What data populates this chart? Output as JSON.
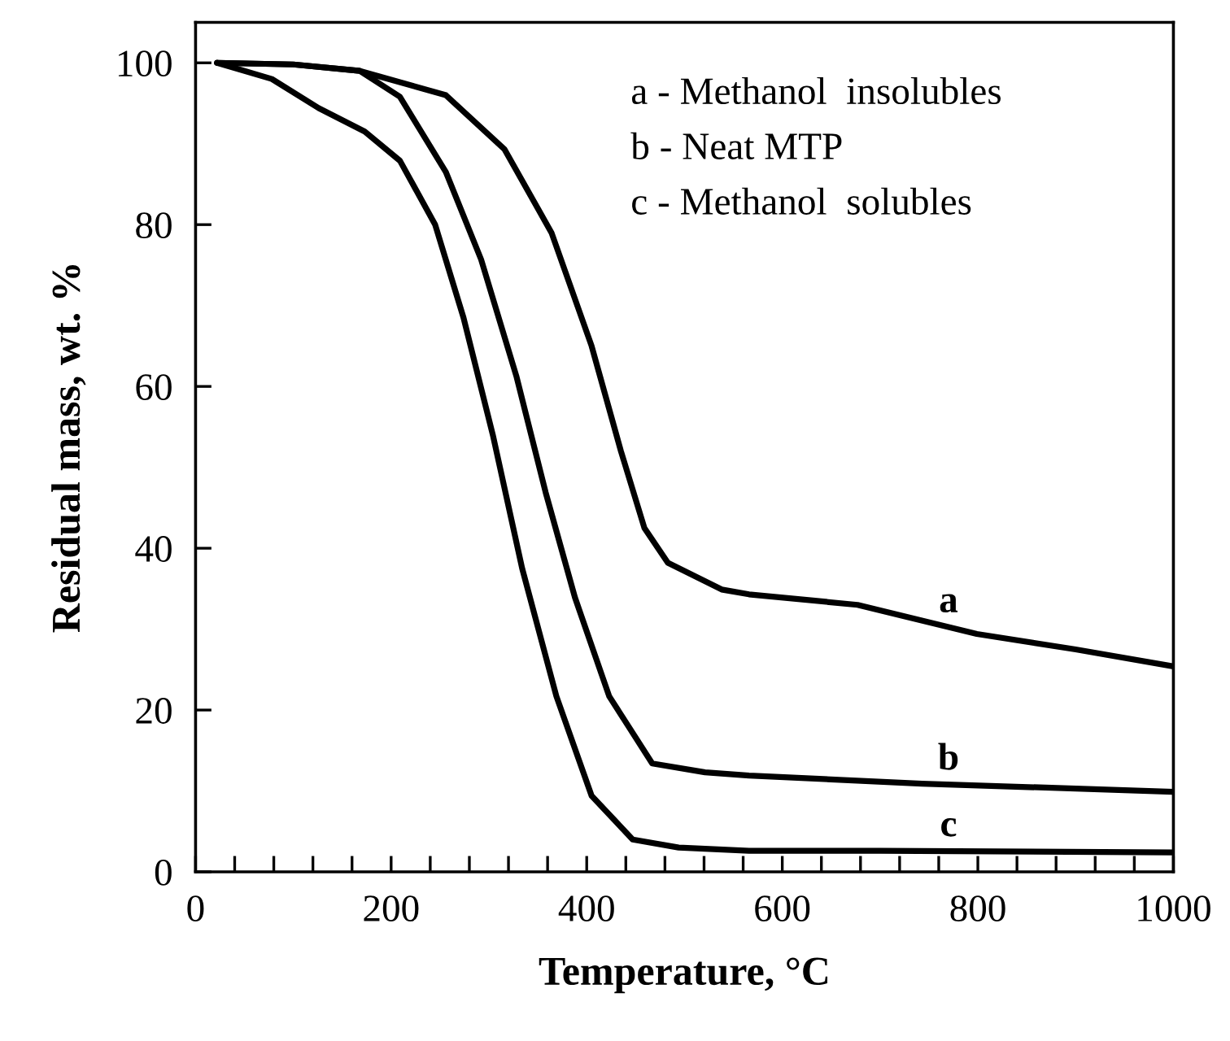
{
  "chart_data": {
    "type": "line",
    "xlabel": "Temperature, °C",
    "ylabel": "Residual mass, wt. %",
    "xlim": [
      0,
      1000
    ],
    "ylim": [
      0,
      105
    ],
    "xticks": [
      0,
      {
        "value": 40,
        "label": null
      },
      {
        "value": 80,
        "label": null
      },
      {
        "value": 120,
        "label": null
      },
      {
        "value": 160,
        "label": null
      },
      200,
      {
        "value": 240,
        "label": null
      },
      {
        "value": 280,
        "label": null
      },
      {
        "value": 320,
        "label": null
      },
      {
        "value": 360,
        "label": null
      },
      400,
      {
        "value": 440,
        "label": null
      },
      {
        "value": 480,
        "label": null
      },
      {
        "value": 520,
        "label": null
      },
      {
        "value": 560,
        "label": null
      },
      600,
      {
        "value": 640,
        "label": null
      },
      {
        "value": 680,
        "label": null
      },
      {
        "value": 720,
        "label": null
      },
      {
        "value": 760,
        "label": null
      },
      800,
      {
        "value": 840,
        "label": null
      },
      {
        "value": 880,
        "label": null
      },
      {
        "value": 920,
        "label": null
      },
      {
        "value": 960,
        "label": null
      },
      1000
    ],
    "yticks": [
      0,
      20,
      40,
      60,
      80,
      100
    ],
    "grid": false,
    "legend": false,
    "marker": "none",
    "line_style": "solid",
    "series": [
      {
        "name": "a",
        "color": "#000000",
        "x": [
          22,
          100,
          168,
          256,
          316,
          364,
          405,
          435,
          459,
          483,
          538,
          566,
          677,
          799,
          900,
          1000
        ],
        "values": [
          100,
          99.8,
          99,
          96,
          89.3,
          79,
          65,
          52,
          42.5,
          38.2,
          34.9,
          34.3,
          33,
          29.4,
          27.5,
          25.4
        ]
      },
      {
        "name": "b",
        "color": "#000000",
        "x": [
          22,
          100,
          168,
          209,
          256,
          292,
          328,
          358,
          388,
          423,
          467,
          521,
          566,
          743,
          1000
        ],
        "values": [
          100,
          99.8,
          99,
          95.8,
          86.5,
          75.7,
          61.3,
          46.9,
          33.9,
          21.7,
          13.4,
          12.3,
          11.9,
          10.9,
          9.9
        ]
      },
      {
        "name": "c",
        "color": "#000000",
        "x": [
          22,
          78,
          126,
          173,
          209,
          245,
          274,
          304,
          334,
          369,
          405,
          447,
          494,
          566,
          700,
          1000
        ],
        "values": [
          100,
          98,
          94.4,
          91.5,
          87.9,
          80,
          68.5,
          54,
          37.5,
          21.7,
          9.4,
          4,
          3,
          2.6,
          2.6,
          2.4
        ]
      }
    ],
    "annotations": [
      "a - Methanol  insolubles",
      "b - Neat MTP",
      "c - Methanol  solubles"
    ]
  }
}
